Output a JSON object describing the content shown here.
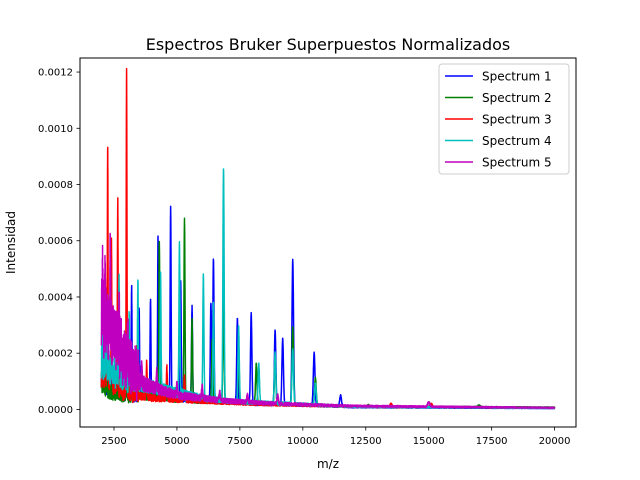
{
  "chart_data": {
    "type": "line",
    "title": "Espectros Bruker Superpuestos Normalizados",
    "xlabel": "m/z",
    "ylabel": "Intensidad",
    "xlim": [
      1150,
      20850
    ],
    "ylim": [
      -6.25e-05,
      0.00125
    ],
    "x_ticks": [
      2500,
      5000,
      7500,
      10000,
      12500,
      15000,
      17500,
      20000
    ],
    "x_tick_labels": [
      "2500",
      "5000",
      "7500",
      "10000",
      "12500",
      "15000",
      "17500",
      "20000"
    ],
    "y_ticks": [
      0,
      0.0002,
      0.0004,
      0.0006,
      0.0008,
      0.001,
      0.0012
    ],
    "y_tick_labels": [
      "0.0000",
      "0.0002",
      "0.0004",
      "0.0006",
      "0.0008",
      "0.0010",
      "0.0012"
    ],
    "grid": false,
    "legend_position": "top-right",
    "x_range": [
      2000,
      20000
    ],
    "series": [
      {
        "name": "Spectrum 1",
        "color": "#0000ff",
        "baseline": [
          [
            2000,
            0.00012
          ],
          [
            2400,
            8e-05
          ],
          [
            3000,
            6e-05
          ],
          [
            4000,
            5e-05
          ],
          [
            5000,
            4e-05
          ],
          [
            6000,
            3e-05
          ],
          [
            7000,
            3e-05
          ],
          [
            8000,
            2e-05
          ],
          [
            10000,
            1.5e-05
          ],
          [
            11500,
            1e-05
          ],
          [
            12000,
            8e-06
          ],
          [
            20000,
            4e-06
          ]
        ],
        "peaks": [
          [
            2100,
            0.0002
          ],
          [
            2300,
            0.00019
          ],
          [
            3000,
            0.0003
          ],
          [
            3200,
            0.00042
          ],
          [
            3500,
            0.00035
          ],
          [
            3950,
            0.00039
          ],
          [
            4250,
            0.00061
          ],
          [
            4750,
            0.00071
          ],
          [
            5150,
            0.00045
          ],
          [
            5600,
            0.00036
          ],
          [
            6350,
            0.00038
          ],
          [
            6450,
            0.00053
          ],
          [
            7400,
            0.00032
          ],
          [
            7950,
            0.00034
          ],
          [
            8900,
            0.00028
          ],
          [
            9200,
            0.00025
          ],
          [
            9600,
            0.00053
          ],
          [
            10450,
            0.0002
          ],
          [
            11500,
            5e-05
          ]
        ]
      },
      {
        "name": "Spectrum 2",
        "color": "#008000",
        "baseline": [
          [
            2000,
            9e-05
          ],
          [
            2500,
            6e-05
          ],
          [
            3500,
            5e-05
          ],
          [
            5000,
            3.5e-05
          ],
          [
            7000,
            2.5e-05
          ],
          [
            9000,
            2e-05
          ],
          [
            11500,
            1.2e-05
          ],
          [
            12000,
            1e-05
          ],
          [
            20000,
            7e-06
          ]
        ],
        "peaks": [
          [
            2200,
            0.00013
          ],
          [
            3400,
            0.00018
          ],
          [
            4300,
            0.0006
          ],
          [
            5300,
            0.00067
          ],
          [
            5600,
            0.00032
          ],
          [
            6400,
            0.00024
          ],
          [
            6850,
            0.00041
          ],
          [
            7450,
            0.00021
          ],
          [
            8150,
            0.00016
          ],
          [
            8900,
            0.00019
          ],
          [
            9600,
            0.00029
          ],
          [
            10500,
            0.00011
          ],
          [
            12600,
            1.5e-05
          ],
          [
            15000,
            2.5e-05
          ],
          [
            17000,
            1.5e-05
          ]
        ]
      },
      {
        "name": "Spectrum 3",
        "color": "#ff0000",
        "baseline": [
          [
            2000,
            0.00012
          ],
          [
            2500,
            9e-05
          ],
          [
            3000,
            6e-05
          ],
          [
            4000,
            4e-05
          ],
          [
            6000,
            3e-05
          ],
          [
            8000,
            2e-05
          ],
          [
            12000,
            1e-05
          ],
          [
            20000,
            5e-06
          ]
        ],
        "peaks": [
          [
            2150,
            0.00047
          ],
          [
            2250,
            0.00093
          ],
          [
            2400,
            0.0006
          ],
          [
            2650,
            0.00073
          ],
          [
            3000,
            0.0012
          ],
          [
            3400,
            0.00022
          ],
          [
            3800,
            0.00017
          ],
          [
            4600,
            0.00015
          ],
          [
            5300,
            0.00012
          ],
          [
            13500,
            2e-05
          ],
          [
            15100,
            2e-05
          ]
        ]
      },
      {
        "name": "Spectrum 4",
        "color": "#00bfbf",
        "baseline": [
          [
            2000,
            0.00016
          ],
          [
            2500,
            0.00013
          ],
          [
            3000,
            0.0001
          ],
          [
            4000,
            8e-05
          ],
          [
            5000,
            6e-05
          ],
          [
            6000,
            4e-05
          ],
          [
            7000,
            3e-05
          ],
          [
            8000,
            2.5e-05
          ],
          [
            10000,
            1.8e-05
          ],
          [
            12000,
            1e-05
          ],
          [
            20000,
            5e-06
          ]
        ],
        "peaks": [
          [
            2050,
            0.00027
          ],
          [
            2200,
            0.00027
          ],
          [
            2700,
            0.00045
          ],
          [
            3100,
            0.00033
          ],
          [
            3450,
            0.00045
          ],
          [
            4350,
            0.00047
          ],
          [
            5100,
            0.00058
          ],
          [
            6050,
            0.00047
          ],
          [
            6450,
            0.00037
          ],
          [
            6850,
            0.00086
          ],
          [
            7450,
            0.00029
          ],
          [
            8250,
            0.00016
          ],
          [
            8900,
            0.0002
          ],
          [
            9600,
            0.00021
          ],
          [
            10500,
            9e-05
          ]
        ]
      },
      {
        "name": "Spectrum 5",
        "color": "#bf00bf",
        "baseline": [
          [
            2000,
            0.0003
          ],
          [
            2100,
            0.00028
          ],
          [
            2300,
            0.00025
          ],
          [
            2600,
            0.0002
          ],
          [
            3000,
            0.00014
          ],
          [
            3500,
            0.0001
          ],
          [
            4000,
            8e-05
          ],
          [
            5000,
            5e-05
          ],
          [
            7000,
            3e-05
          ],
          [
            9000,
            2e-05
          ],
          [
            12000,
            1.2e-05
          ],
          [
            20000,
            6e-06
          ]
        ],
        "peaks": [
          [
            2050,
            0.00045
          ],
          [
            2150,
            0.00042
          ],
          [
            2350,
            0.00057
          ],
          [
            2700,
            0.0003
          ],
          [
            3050,
            0.0002
          ],
          [
            3600,
            0.00015
          ],
          [
            4200,
            0.00013
          ],
          [
            5000,
            9e-05
          ],
          [
            6000,
            8e-05
          ],
          [
            6700,
            6e-05
          ],
          [
            7800,
            5e-05
          ],
          [
            9000,
            5e-05
          ],
          [
            15000,
            2.5e-05
          ]
        ]
      }
    ]
  }
}
